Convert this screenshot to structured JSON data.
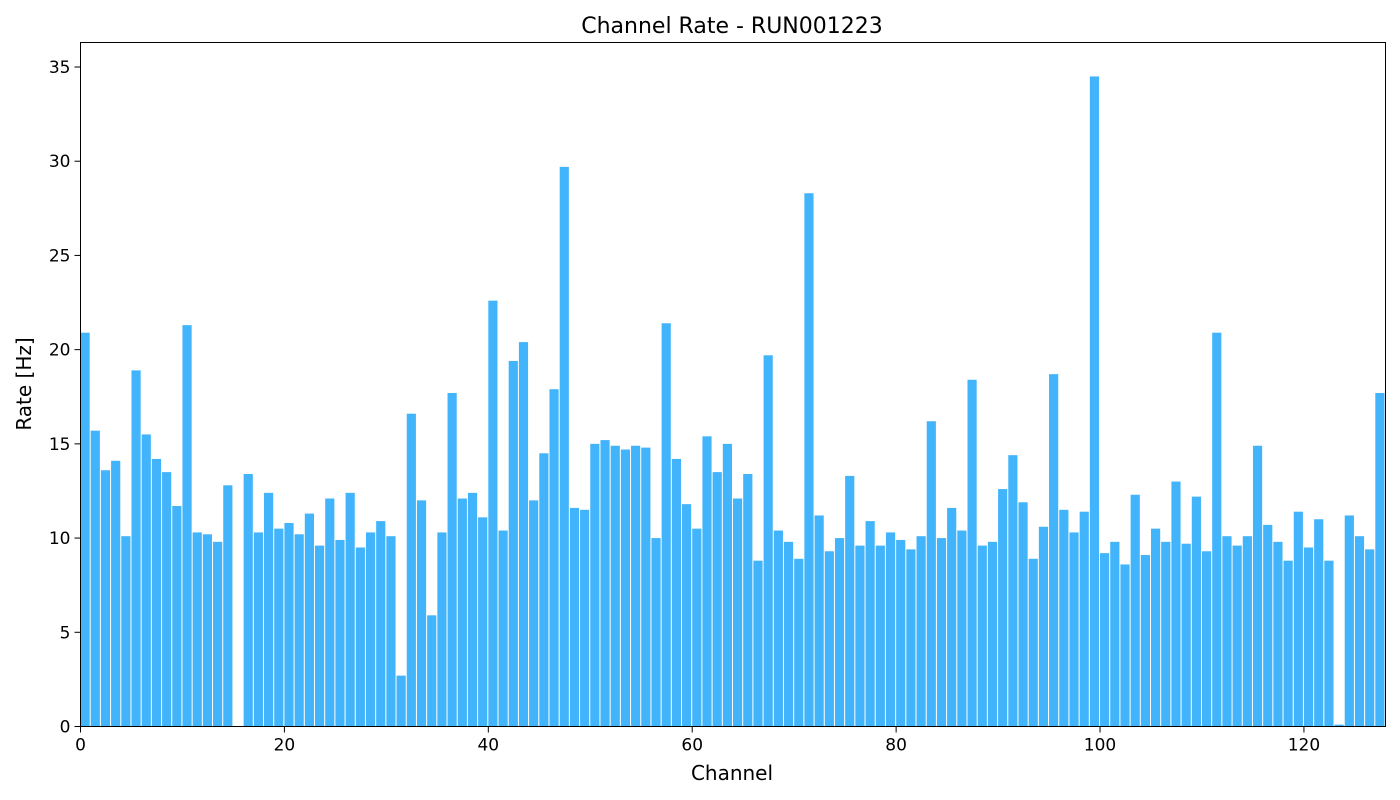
{
  "chart_data": {
    "type": "bar",
    "title": "Channel Rate - RUN001223",
    "xlabel": "Channel",
    "ylabel": "Rate [Hz]",
    "xlim": [
      0,
      128
    ],
    "ylim": [
      0,
      36.3
    ],
    "xticks": [
      0,
      20,
      40,
      60,
      80,
      100,
      120
    ],
    "yticks": [
      0,
      5,
      10,
      15,
      20,
      25,
      30,
      35
    ],
    "grid": false,
    "bar_color": "#42b4fb",
    "x": [
      0,
      1,
      2,
      3,
      4,
      5,
      6,
      7,
      8,
      9,
      10,
      11,
      12,
      13,
      14,
      15,
      16,
      17,
      18,
      19,
      20,
      21,
      22,
      23,
      24,
      25,
      26,
      27,
      28,
      29,
      30,
      31,
      32,
      33,
      34,
      35,
      36,
      37,
      38,
      39,
      40,
      41,
      42,
      43,
      44,
      45,
      46,
      47,
      48,
      49,
      50,
      51,
      52,
      53,
      54,
      55,
      56,
      57,
      58,
      59,
      60,
      61,
      62,
      63,
      64,
      65,
      66,
      67,
      68,
      69,
      70,
      71,
      72,
      73,
      74,
      75,
      76,
      77,
      78,
      79,
      80,
      81,
      82,
      83,
      84,
      85,
      86,
      87,
      88,
      89,
      90,
      91,
      92,
      93,
      94,
      95,
      96,
      97,
      98,
      99,
      100,
      101,
      102,
      103,
      104,
      105,
      106,
      107,
      108,
      109,
      110,
      111,
      112,
      113,
      114,
      115,
      116,
      117,
      118,
      119,
      120,
      121,
      122,
      123,
      124,
      125,
      126,
      127
    ],
    "values": [
      20.9,
      15.7,
      13.6,
      14.1,
      10.1,
      18.9,
      15.5,
      14.2,
      13.5,
      11.7,
      21.3,
      10.3,
      10.2,
      9.8,
      12.8,
      0,
      13.4,
      10.3,
      12.4,
      10.5,
      10.8,
      10.2,
      11.3,
      9.6,
      12.1,
      9.9,
      12.4,
      9.5,
      10.3,
      10.9,
      10.1,
      2.7,
      16.6,
      12.0,
      5.9,
      10.3,
      17.7,
      12.1,
      12.4,
      11.1,
      22.6,
      10.4,
      19.4,
      20.4,
      12.0,
      14.5,
      17.9,
      29.7,
      11.6,
      11.5,
      15.0,
      15.2,
      14.9,
      14.7,
      14.9,
      14.8,
      10.0,
      21.4,
      14.2,
      11.8,
      10.5,
      15.4,
      13.5,
      15.0,
      12.1,
      13.4,
      8.8,
      19.7,
      10.4,
      9.8,
      8.9,
      28.3,
      11.2,
      9.3,
      10.0,
      13.3,
      9.6,
      10.9,
      9.6,
      10.3,
      9.9,
      9.4,
      10.1,
      16.2,
      10.0,
      11.6,
      10.4,
      18.4,
      9.6,
      9.8,
      12.6,
      14.4,
      11.9,
      8.9,
      10.6,
      18.7,
      11.5,
      10.3,
      11.4,
      34.5,
      9.2,
      9.8,
      8.6,
      12.3,
      9.1,
      10.5,
      9.8,
      13.0,
      9.7,
      12.2,
      9.3,
      20.9,
      10.1,
      9.6,
      10.1,
      14.9,
      10.7,
      9.8,
      8.8,
      11.4,
      9.5,
      11.0,
      8.8,
      0.1,
      11.2,
      10.1,
      9.4,
      17.7
    ]
  }
}
